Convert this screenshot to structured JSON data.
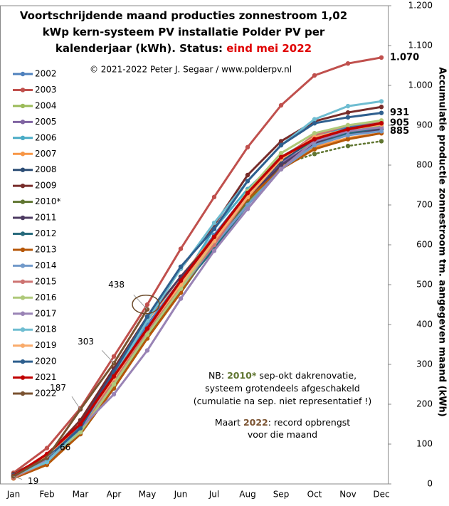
{
  "chart_data": {
    "type": "line",
    "title_lines": [
      "Voortschrijdende  maand producties  zonnestroom 1,02",
      "kWp kern-systeem  PV installatie  Polder PV per",
      "kalenderjaar (kWh). Status: "
    ],
    "status": "eind mei 2022",
    "status_color": "#e00000",
    "subtitle": "© 2021-2022  Peter J. Segaar / www.polderpv.nl",
    "y_label": "Accumulatie productie zonnestroom tm. aangegeven maand (kWh)",
    "categories": [
      "Jan",
      "Feb",
      "Mar",
      "Apr",
      "May",
      "Jun",
      "Jul",
      "Aug",
      "Sep",
      "Oct",
      "Nov",
      "Dec"
    ],
    "ylim": [
      0,
      1200
    ],
    "yticks": [
      0,
      100,
      200,
      300,
      400,
      500,
      600,
      700,
      800,
      900,
      {
        "value": 1000,
        "label": "1.000"
      },
      {
        "value": 1100,
        "label": "1.100"
      },
      {
        "value": 1200,
        "label": "1.200"
      }
    ],
    "grid": false,
    "legend": "left",
    "series": [
      {
        "name": "2002",
        "color": "#4f81bd",
        "values": [
          22,
          62,
          145,
          270,
          400,
          510,
          625,
          730,
          815,
          870,
          895,
          910
        ]
      },
      {
        "name": "2003",
        "color": "#c0504d",
        "values": [
          28,
          90,
          190,
          320,
          450,
          590,
          720,
          845,
          950,
          1025,
          1055,
          1070
        ]
      },
      {
        "name": "2004",
        "color": "#9bbb59",
        "values": [
          18,
          55,
          130,
          245,
          370,
          485,
          600,
          705,
          800,
          860,
          885,
          900
        ]
      },
      {
        "name": "2005",
        "color": "#8064a2",
        "values": [
          20,
          58,
          135,
          255,
          385,
          500,
          610,
          715,
          805,
          855,
          880,
          893
        ]
      },
      {
        "name": "2006",
        "color": "#4bacc6",
        "values": [
          15,
          50,
          125,
          240,
          380,
          505,
          640,
          740,
          820,
          870,
          892,
          905
        ]
      },
      {
        "name": "2007",
        "color": "#f79646",
        "values": [
          25,
          70,
          150,
          290,
          410,
          520,
          620,
          715,
          795,
          845,
          868,
          880
        ]
      },
      {
        "name": "2008",
        "color": "#2c4d75",
        "values": [
          22,
          60,
          140,
          260,
          390,
          505,
          610,
          720,
          810,
          865,
          892,
          905
        ]
      },
      {
        "name": "2009",
        "color": "#772c2a",
        "values": [
          25,
          70,
          160,
          290,
          420,
          540,
          650,
          775,
          860,
          910,
          932,
          946
        ]
      },
      {
        "name": "2010*",
        "color": "#5f7530",
        "dashed_from_index": 8,
        "values": [
          15,
          55,
          130,
          240,
          370,
          480,
          600,
          710,
          800,
          828,
          848,
          860
        ]
      },
      {
        "name": "2011",
        "color": "#4d3b62",
        "values": [
          20,
          65,
          150,
          285,
          415,
          520,
          615,
          715,
          800,
          855,
          878,
          890
        ]
      },
      {
        "name": "2012",
        "color": "#276a7c",
        "values": [
          18,
          55,
          130,
          245,
          375,
          490,
          590,
          700,
          790,
          850,
          880,
          895
        ]
      },
      {
        "name": "2013",
        "color": "#b65708",
        "values": [
          14,
          48,
          125,
          240,
          365,
          480,
          610,
          715,
          790,
          840,
          865,
          880
        ]
      },
      {
        "name": "2014",
        "color": "#729aca",
        "values": [
          20,
          60,
          130,
          250,
          380,
          490,
          600,
          700,
          790,
          850,
          875,
          885
        ]
      },
      {
        "name": "2015",
        "color": "#cd7371",
        "values": [
          16,
          55,
          135,
          260,
          385,
          495,
          600,
          720,
          815,
          875,
          900,
          910
        ]
      },
      {
        "name": "2016",
        "color": "#afc97a",
        "values": [
          22,
          62,
          130,
          250,
          375,
          490,
          610,
          735,
          830,
          880,
          900,
          912
        ]
      },
      {
        "name": "2017",
        "color": "#9983b5",
        "values": [
          20,
          62,
          140,
          225,
          335,
          465,
          585,
          690,
          790,
          860,
          885,
          895
        ]
      },
      {
        "name": "2018",
        "color": "#6fbdd1",
        "values": [
          20,
          55,
          140,
          270,
          410,
          540,
          655,
          760,
          850,
          915,
          948,
          960
        ]
      },
      {
        "name": "2019",
        "color": "#f9ab6b",
        "values": [
          22,
          70,
          150,
          265,
          390,
          500,
          610,
          720,
          815,
          870,
          890,
          902
        ]
      },
      {
        "name": "2020",
        "color": "#2e5f8e",
        "values": [
          22,
          65,
          140,
          280,
          420,
          545,
          640,
          760,
          850,
          905,
          920,
          931
        ]
      },
      {
        "name": "2021",
        "color": "#c00000",
        "values": [
          20,
          75,
          150,
          270,
          390,
          510,
          620,
          730,
          820,
          865,
          890,
          905
        ]
      },
      {
        "name": "2022",
        "color": "#7a5230",
        "values": [
          19,
          66,
          187,
          303,
          438,
          null,
          null,
          null,
          null,
          null,
          null,
          null
        ]
      }
    ],
    "annotations": [
      {
        "text": "1.070",
        "value": 1070,
        "color": "#c0504d"
      },
      {
        "text": "931",
        "value": 931,
        "color": "#5b7fa8"
      },
      {
        "text": "905",
        "value": 905,
        "color": "#c00000"
      },
      {
        "text": "885",
        "value": 885,
        "color": "#1f3fbf"
      }
    ],
    "notes": [
      [
        "NB: ",
        "2010*",
        " sep-okt dakrenovatie,"
      ],
      [
        "systeem grotendeels afgeschakeld"
      ],
      [
        "(cumulatie na sep. niet representatief !)"
      ],
      [
        "Maart ",
        "2022",
        ": record opbrengst"
      ],
      [
        "voor die maand"
      ]
    ]
  }
}
